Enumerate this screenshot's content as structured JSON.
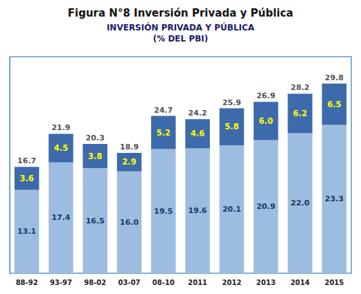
{
  "chart_data": {
    "type": "bar",
    "title": "Figura N°8 Inversión Privada y Pública",
    "annotations": [
      "INVERSIÓN PRIVADA Y PÚBLICA",
      "(% DEL PBI)"
    ],
    "categories": [
      "88-92",
      "93-97",
      "98-02",
      "03-07",
      "08-10",
      "2011",
      "2012",
      "2013",
      "2014",
      "2015"
    ],
    "series": [
      {
        "color": "#9dbde0",
        "values": [
          13.1,
          17.4,
          16.5,
          16.0,
          19.5,
          19.6,
          20.1,
          20.9,
          22.0,
          23.3
        ],
        "value_labels": [
          "13.1",
          "17.4",
          "16.5",
          "16.0",
          "19.5",
          "19.6",
          "20.1",
          "20.9",
          "22.0",
          "23.3"
        ]
      },
      {
        "color": "#3d6aab",
        "values": [
          3.6,
          4.5,
          3.8,
          2.9,
          5.2,
          4.6,
          5.8,
          6.0,
          6.2,
          6.5
        ],
        "value_labels": [
          "3.6",
          "4.5",
          "3.8",
          "2.9",
          "5.2",
          "4.6",
          "5.8",
          "6.0",
          "6.2",
          "6.5"
        ]
      }
    ],
    "totals": [
      16.7,
      21.9,
      20.3,
      18.9,
      24.7,
      24.2,
      25.9,
      26.9,
      28.2,
      29.8
    ],
    "stacked": true,
    "data_labels": true,
    "ylim": [
      0,
      34
    ],
    "grid": false,
    "tick_labels": "x"
  }
}
